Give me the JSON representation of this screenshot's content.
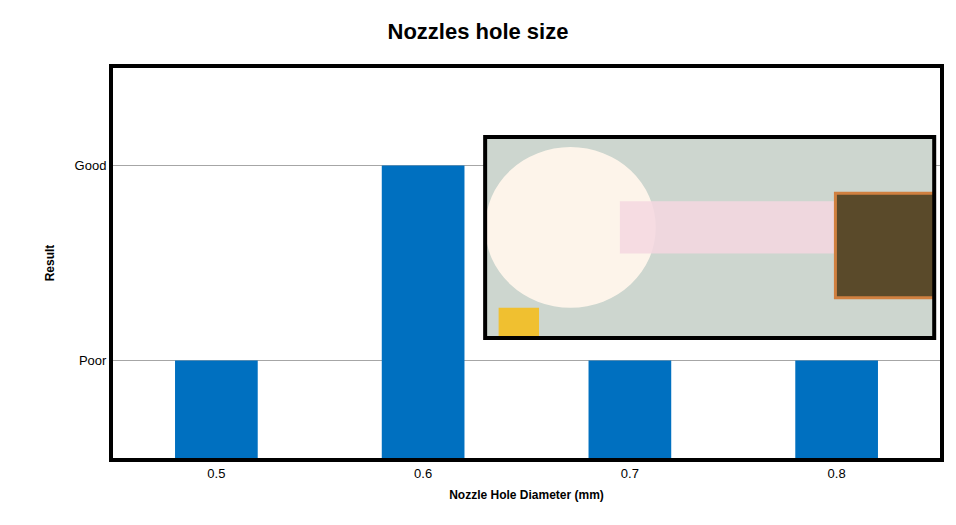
{
  "chart_data": {
    "type": "bar",
    "title": "Nozzles hole size",
    "x_label": "Nozzle Hole Diameter (mm)",
    "y_label": "Result",
    "categories": [
      "0.5",
      "0.6",
      "0.7",
      "0.8"
    ],
    "values": [
      1,
      3,
      1,
      1
    ],
    "color": "#0070c0",
    "ylim": [
      0,
      4
    ],
    "yticks": [
      {
        "value": 1,
        "label": "Poor"
      },
      {
        "value": 3,
        "label": "Good"
      }
    ],
    "grid": true
  }
}
